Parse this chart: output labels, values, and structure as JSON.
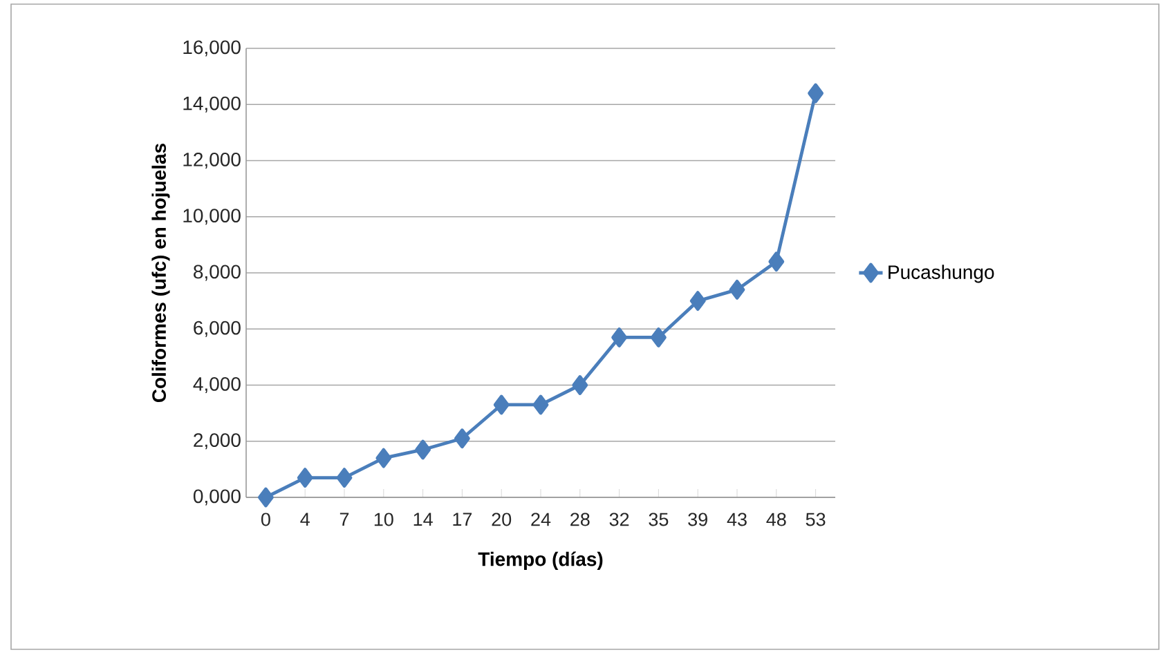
{
  "chart_data": {
    "type": "line",
    "xlabel": "Tiempo (días)",
    "ylabel": "Coliformes (ufc) en hojuelas",
    "categories": [
      "0",
      "4",
      "7",
      "10",
      "14",
      "17",
      "20",
      "24",
      "28",
      "32",
      "35",
      "39",
      "43",
      "48",
      "53"
    ],
    "series": [
      {
        "name": "Pucashungo",
        "color": "#4a7ebb",
        "values": [
          0,
          700,
          700,
          1400,
          1700,
          2100,
          3300,
          3300,
          4000,
          5700,
          5700,
          7000,
          7400,
          8400,
          14400
        ]
      }
    ],
    "ylim": [
      0,
      16000
    ],
    "yticks": [
      {
        "value": 0,
        "label": "0,000"
      },
      {
        "value": 2000,
        "label": "2,000"
      },
      {
        "value": 4000,
        "label": "4,000"
      },
      {
        "value": 6000,
        "label": "6,000"
      },
      {
        "value": 8000,
        "label": "8,000"
      },
      {
        "value": 10000,
        "label": "10,000"
      },
      {
        "value": 12000,
        "label": "12,000"
      },
      {
        "value": 14000,
        "label": "14,000"
      },
      {
        "value": 16000,
        "label": "16,000"
      }
    ],
    "grid": "y",
    "legend": "right",
    "marker": "diamond",
    "line_style": "solid"
  }
}
